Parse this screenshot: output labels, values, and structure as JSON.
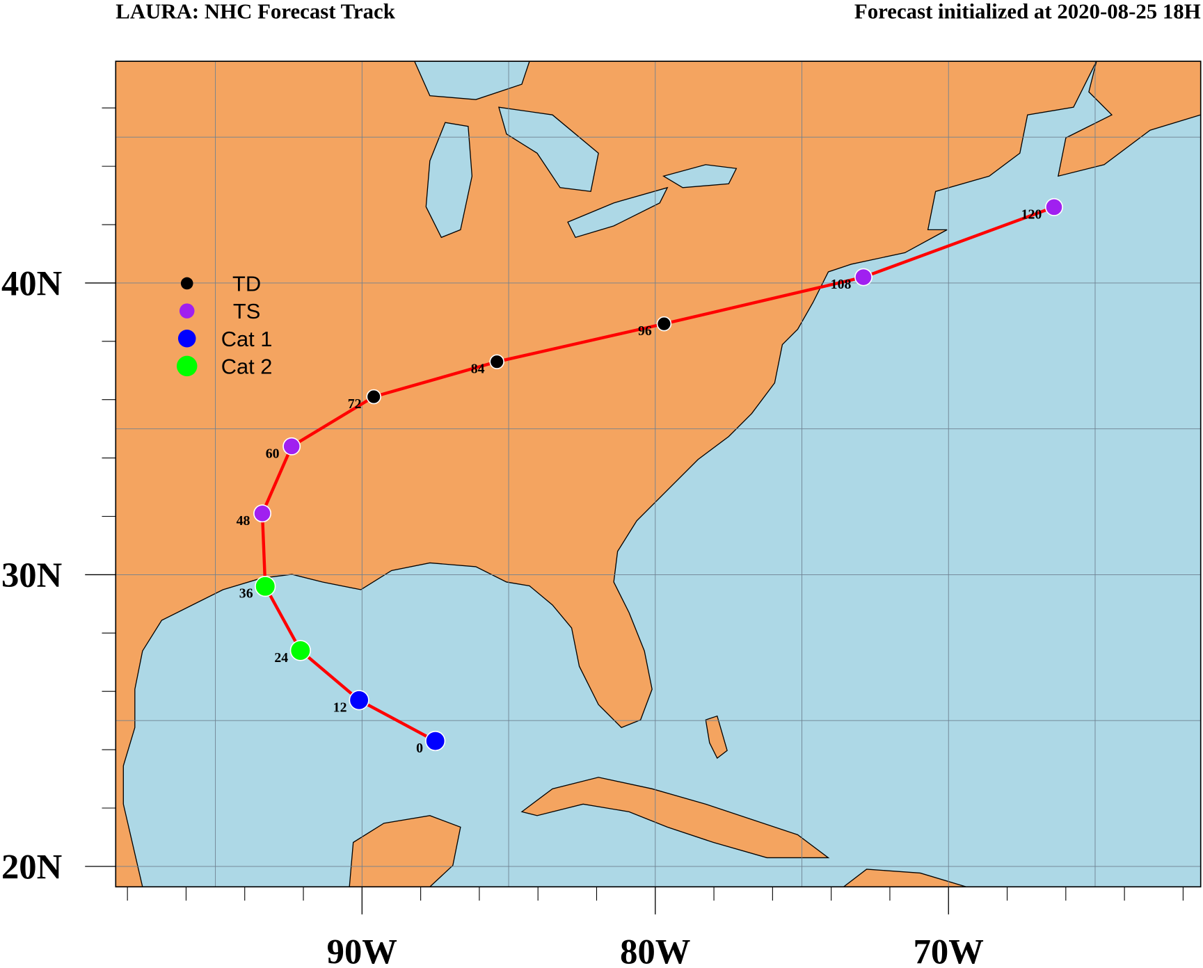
{
  "chart_data": {
    "type": "track-map",
    "title": "LAURA: NHC Forecast Track",
    "subtitle": "Forecast initialized at 2020-08-25 18H",
    "xlim": [
      -98.4,
      -61.4
    ],
    "ylim": [
      19.3,
      47.6
    ],
    "xticks": [
      {
        "value": -90,
        "label": "90W"
      },
      {
        "value": -80,
        "label": "80W"
      },
      {
        "value": -70,
        "label": "70W"
      }
    ],
    "yticks": [
      {
        "value": 20,
        "label": "20N"
      },
      {
        "value": 30,
        "label": "30N"
      },
      {
        "value": 40,
        "label": "40N"
      }
    ],
    "xminorticks": [
      -98,
      -96,
      -94,
      -92,
      -88,
      -86,
      -84,
      -82,
      -78,
      -76,
      -74,
      -72,
      -68,
      -66,
      -64,
      -62
    ],
    "yminorticks": [
      22,
      24,
      26,
      28,
      32,
      34,
      36,
      38,
      42,
      44,
      46
    ],
    "xgrid": [
      -95,
      -90,
      -85,
      -80,
      -75,
      -70,
      -65
    ],
    "ygrid": [
      20,
      25,
      30,
      35,
      40,
      45
    ],
    "land_color": "#f4a460",
    "water_color": "#add8e6",
    "track_color": "#ff0000",
    "legend": [
      {
        "name": "TD",
        "color": "#000000"
      },
      {
        "name": "TS",
        "color": "#a020f0"
      },
      {
        "name": "Cat 1",
        "color": "#0000ff"
      },
      {
        "name": "Cat 2",
        "color": "#00ff00"
      }
    ],
    "track": {
      "hours": [
        0,
        12,
        24,
        36,
        48,
        60,
        72,
        84,
        96,
        108,
        120
      ],
      "lon": [
        -87.5,
        -90.1,
        -92.1,
        -93.3,
        -93.4,
        -92.4,
        -89.6,
        -85.4,
        -79.7,
        -72.9,
        -66.4
      ],
      "lat": [
        24.3,
        25.7,
        27.4,
        29.6,
        32.1,
        34.4,
        36.1,
        37.3,
        38.6,
        40.2,
        42.6
      ],
      "category": [
        2,
        2,
        3,
        3,
        1,
        1,
        0,
        0,
        0,
        1,
        1
      ]
    }
  }
}
